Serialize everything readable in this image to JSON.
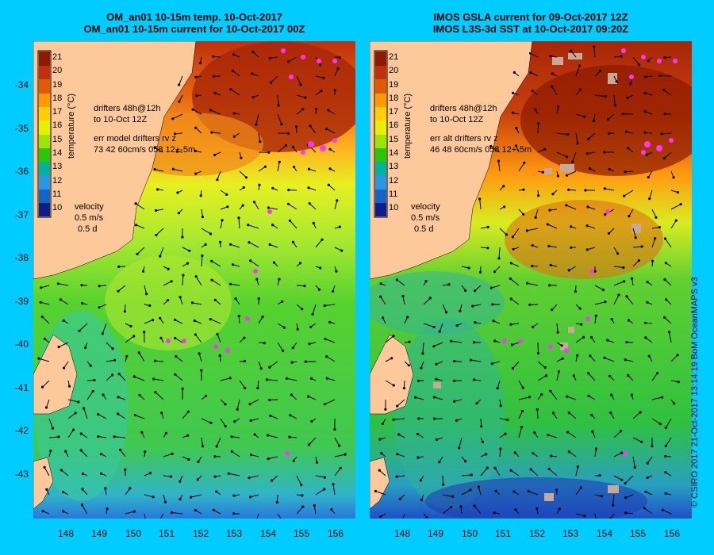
{
  "panels": [
    {
      "title_line1": "OM_an01 10-15m temp. 10-Oct-2017",
      "title_line2": "OM_an01 10-15m current for 10-Oct-2017 00Z",
      "colorbar_label": "temperature (°C)",
      "colorbar_ticks": [
        "21",
        "20",
        "19",
        "18",
        "17",
        "16",
        "15",
        "14",
        "13",
        "12",
        "11",
        "10"
      ],
      "drifters_line1": "drifters 48h@12h",
      "drifters_line2": "to 10-Oct 12Z",
      "err_line1": "err model drifters rv z",
      "err_line2": "73 42 60cm/s 058 12+-5m",
      "velocity_label": "velocity",
      "velocity_speed": "0.5 m/s",
      "velocity_days": "0.5 d"
    },
    {
      "title_line1": "IMOS GSLA current for 09-Oct-2017 12Z",
      "title_line2": "IMOS L3S-3d SST at 10-Oct-2017 09:20Z",
      "colorbar_label": "temperature (°C)",
      "colorbar_ticks": [
        "21",
        "20",
        "19",
        "18",
        "17",
        "16",
        "15",
        "14",
        "13",
        "12",
        "11",
        "10"
      ],
      "drifters_line1": "drifters 48h@12h",
      "drifters_line2": "to 10-Oct 12Z",
      "err_line1": "err alt drifters rv z",
      "err_line2": "46 48 60cm/s 058 12+-5m",
      "velocity_label": "velocity",
      "velocity_speed": "0.5 m/s",
      "velocity_days": "0.5 d"
    }
  ],
  "y_axis_labels": [
    "-34",
    "-35",
    "-36",
    "-37",
    "-38",
    "-39",
    "-40",
    "-41",
    "-42",
    "-43"
  ],
  "x_axis_labels": [
    "148",
    "149",
    "150",
    "151",
    "152",
    "153",
    "154",
    "155",
    "156"
  ],
  "credit": "© CSIRO 2017   21-Oct-2017 13:14:19 BoM OceanMAPS v3",
  "colors": {
    "background": "#00ccff",
    "land": "#fdc99b",
    "drifter": "#ff33ff",
    "colorbar": [
      "#8b1a00",
      "#c0300a",
      "#e05a00",
      "#ff9a00",
      "#ffd000",
      "#e6f000",
      "#9be600",
      "#28c800",
      "#00b49b",
      "#2896e6",
      "#1464c8",
      "#0a1e8c"
    ]
  }
}
